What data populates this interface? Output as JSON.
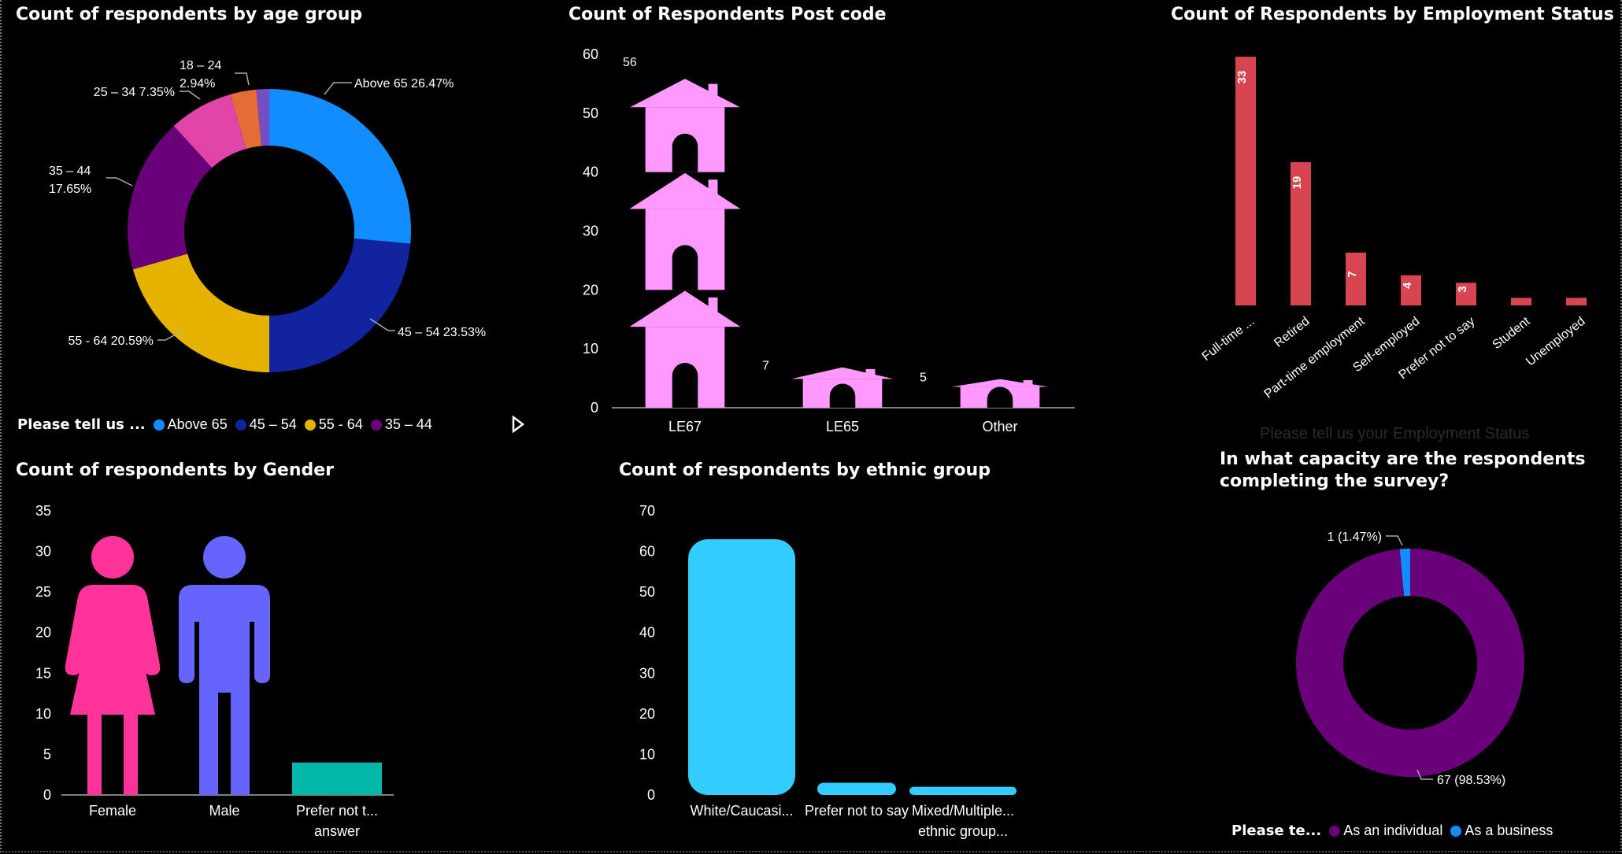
{
  "colors": {
    "above65": "#118DFF",
    "age45_54": "#12239E",
    "age55_64": "#E6B400",
    "age35_44": "#6B007B",
    "age25_34": "#E044A7",
    "age18_24": "#E66C37",
    "age_other": "#744EC2",
    "house": "#FF99FF",
    "employment": "#D64550",
    "female": "#FF3399",
    "male": "#6666FF",
    "prefer_gender": "#01B8AA",
    "ethnic": "#33CCFF",
    "individual": "#6B007B",
    "business": "#118DFF"
  },
  "legend_age": {
    "title": "Please tell us ...",
    "items": [
      {
        "label": "Above 65",
        "color_key": "above65"
      },
      {
        "label": "45 – 54",
        "color_key": "age45_54"
      },
      {
        "label": "55 - 64",
        "color_key": "age55_64"
      },
      {
        "label": "35 – 44",
        "color_key": "age35_44"
      }
    ],
    "next_icon": "play-arrow-icon"
  },
  "legend_capacity": {
    "title": "Please te...",
    "items": [
      {
        "label": "As an individual",
        "color_key": "individual"
      },
      {
        "label": "As a business",
        "color_key": "business"
      }
    ]
  },
  "employment_axis_title": "Please tell us your Employment Status",
  "chart_data": [
    {
      "id": "age",
      "type": "pie",
      "donut": true,
      "title": "Count of respondents by age group",
      "slices": [
        {
          "label": "Above 65",
          "pct": 26.47,
          "data_label": "Above 65 26.47%",
          "color_key": "above65"
        },
        {
          "label": "45 – 54",
          "pct": 23.53,
          "data_label": "45 – 54 23.53%",
          "color_key": "age45_54"
        },
        {
          "label": "55 - 64",
          "pct": 20.59,
          "data_label": "55 - 64 20.59%",
          "color_key": "age55_64"
        },
        {
          "label": "35 – 44",
          "pct": 17.65,
          "data_label": [
            "35 – 44",
            "17.65%"
          ],
          "color_key": "age35_44"
        },
        {
          "label": "25 – 34",
          "pct": 7.35,
          "data_label": "25 – 34 7.35%",
          "color_key": "age25_34"
        },
        {
          "label": "18 – 24",
          "pct": 2.94,
          "data_label": [
            "18 – 24",
            "2.94%"
          ],
          "color_key": "age18_24"
        },
        {
          "label": "",
          "pct": 1.47,
          "data_label": "",
          "color_key": "age_other"
        }
      ]
    },
    {
      "id": "postcode",
      "type": "bar",
      "title": "Count of Respondents Post code",
      "categories": [
        "LE67",
        "LE65",
        "Other"
      ],
      "values": [
        56,
        7,
        5
      ],
      "ylim": [
        0,
        60
      ],
      "yticks": [
        0,
        10,
        20,
        30,
        40,
        50,
        60
      ]
    },
    {
      "id": "employment",
      "type": "bar",
      "title": "Count of Respondents by Employment Status",
      "categories": [
        "Full-time ...",
        "Retired",
        "Part-time employment",
        "Self-employed",
        "Prefer not to say",
        "Student",
        "Unemployed"
      ],
      "values": [
        33,
        19,
        7,
        4,
        3,
        1,
        1
      ],
      "data_labels": [
        "33",
        "19",
        "7",
        "4",
        "3",
        "",
        ""
      ],
      "ylim": [
        0,
        33
      ]
    },
    {
      "id": "gender",
      "type": "bar",
      "title": "Count of respondents by Gender",
      "categories": [
        [
          "Female"
        ],
        [
          "Male"
        ],
        [
          "Prefer not t...",
          "answer"
        ]
      ],
      "values": [
        32,
        32,
        4
      ],
      "ylim": [
        0,
        35
      ],
      "yticks": [
        0,
        5,
        10,
        15,
        20,
        25,
        30,
        35
      ]
    },
    {
      "id": "ethnic",
      "type": "bar",
      "title": "Count of respondents by ethnic group",
      "categories": [
        [
          "White/Caucasi..."
        ],
        [
          "Prefer not to say"
        ],
        [
          "Mixed/Multiple...",
          "ethnic group..."
        ]
      ],
      "values": [
        63,
        3,
        2
      ],
      "ylim": [
        0,
        70
      ],
      "yticks": [
        0,
        10,
        20,
        30,
        40,
        50,
        60,
        70
      ]
    },
    {
      "id": "capacity",
      "type": "pie",
      "donut": true,
      "title": [
        "In what capacity are the respondents",
        "completing the survey?"
      ],
      "slices": [
        {
          "label": "As an individual",
          "value": 67,
          "pct": 98.53,
          "data_label": "67 (98.53%)",
          "color_key": "individual"
        },
        {
          "label": "As a business",
          "value": 1,
          "pct": 1.47,
          "data_label": "1 (1.47%)",
          "color_key": "business"
        }
      ]
    }
  ]
}
